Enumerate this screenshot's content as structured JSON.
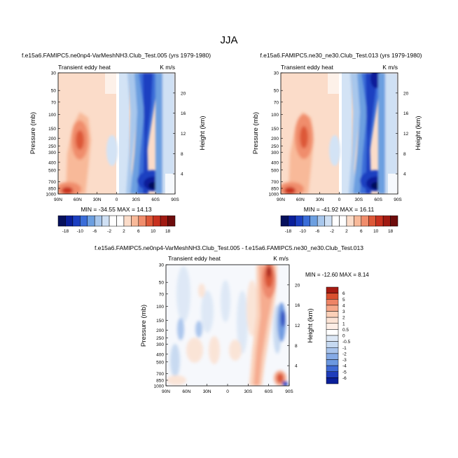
{
  "figure": {
    "title": "JJA"
  },
  "chart_data": [
    {
      "type": "heatmap",
      "title": "f.e15a6.FAMIPC5.ne0np4-VarMeshNH3.Club_Test.005 (yrs 1979-1980)",
      "subtitle_left": "Transient eddy heat",
      "subtitle_right": "K m/s",
      "xlabel": "",
      "ylabel": "Pressure (mb)",
      "ylabel_right": "Height (km)",
      "x_ticks": [
        "90N",
        "60N",
        "30N",
        "0",
        "30S",
        "60S",
        "90S"
      ],
      "y_ticks": [
        "30",
        "50",
        "70",
        "100",
        "150",
        "200",
        "250",
        "300",
        "400",
        "500",
        "700",
        "850",
        "1000"
      ],
      "right_ticks": [
        "20",
        "16",
        "12",
        "8",
        "4"
      ],
      "stats": "MIN = -34.55   MAX =  14.13",
      "colorbar_labels": [
        "-18",
        "-10",
        "-6",
        "-2",
        "2",
        "6",
        "10",
        "18"
      ],
      "features": [
        {
          "lat": 68,
          "p": 220,
          "value": 10
        },
        {
          "lat": 75,
          "p": 900,
          "value": 14.13
        },
        {
          "lat": -55,
          "p": 850,
          "value": -34.55
        },
        {
          "lat": -52,
          "p": 250,
          "value": -18
        }
      ]
    },
    {
      "type": "heatmap",
      "title": "f.e15a6.FAMIPC5.ne30_ne30.Club_Test.013 (yrs 1979-1980)",
      "subtitle_left": "Transient eddy heat",
      "subtitle_right": "K m/s",
      "xlabel": "",
      "ylabel": "Pressure (mb)",
      "ylabel_right": "Height (km)",
      "x_ticks": [
        "90N",
        "60N",
        "30N",
        "0",
        "30S",
        "60S",
        "90S"
      ],
      "y_ticks": [
        "30",
        "50",
        "70",
        "100",
        "150",
        "200",
        "250",
        "300",
        "400",
        "500",
        "700",
        "850",
        "1000"
      ],
      "right_ticks": [
        "20",
        "16",
        "12",
        "8",
        "4"
      ],
      "stats": "MIN = -41.92   MAX =  16.11",
      "colorbar_labels": [
        "-18",
        "-10",
        "-6",
        "-2",
        "2",
        "6",
        "10",
        "18"
      ],
      "features": [
        {
          "lat": 68,
          "p": 220,
          "value": 12
        },
        {
          "lat": 75,
          "p": 900,
          "value": 16.11
        },
        {
          "lat": -55,
          "p": 850,
          "value": -41.92
        },
        {
          "lat": -55,
          "p": 40,
          "value": -18
        }
      ]
    },
    {
      "type": "heatmap",
      "title": "f.e15a6.FAMIPC5.ne0np4-VarMeshNH3.Club_Test.005 - f.e15a6.FAMIPC5.ne30_ne30.Club_Test.013",
      "subtitle_left": "Transient eddy heat",
      "subtitle_right": "K m/s",
      "xlabel": "",
      "ylabel": "Pressure (mb)",
      "ylabel_right": "Height (km)",
      "x_ticks": [
        "90N",
        "60N",
        "30N",
        "0",
        "30S",
        "60S",
        "90S"
      ],
      "y_ticks": [
        "30",
        "50",
        "70",
        "100",
        "150",
        "200",
        "250",
        "300",
        "400",
        "500",
        "700",
        "850",
        "1000"
      ],
      "right_ticks": [
        "20",
        "16",
        "12",
        "8",
        "4"
      ],
      "stats": "MIN = -12.60   MAX =  8.14",
      "colorbar_labels": [
        "6",
        "5",
        "4",
        "3",
        "2",
        "1",
        "0.5",
        "0",
        "-0.5",
        "-1",
        "-2",
        "-3",
        "-4",
        "-5",
        "-6"
      ],
      "features": [
        {
          "lat": -52,
          "p": 40,
          "value": 8.14
        },
        {
          "lat": -45,
          "p": 500,
          "value": 2
        },
        {
          "lat": -80,
          "p": 900,
          "value": 3
        },
        {
          "lat": -78,
          "p": 400,
          "value": -4
        },
        {
          "lat": -85,
          "p": 950,
          "value": -12.6
        }
      ]
    }
  ]
}
